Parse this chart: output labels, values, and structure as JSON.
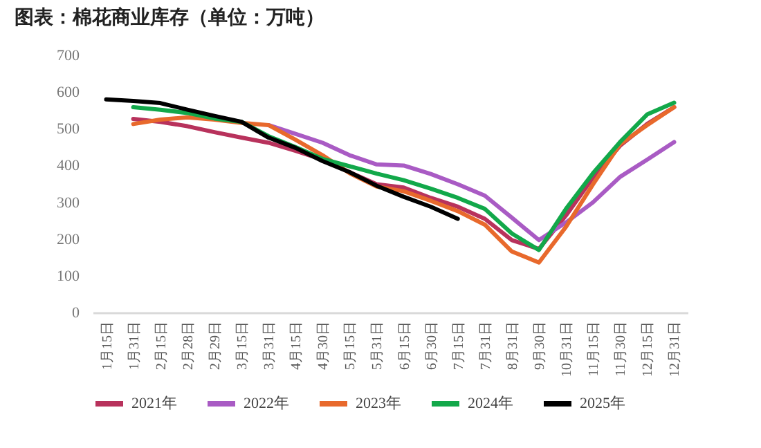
{
  "chart_data": {
    "type": "line",
    "title": "图表：棉花商业库存（单位：万吨）",
    "categories": [
      "1月15日",
      "1月31日",
      "2月15日",
      "2月28日",
      "2月29日",
      "3月15日",
      "3月31日",
      "4月15日",
      "4月30日",
      "5月15日",
      "5月31日",
      "6月15日",
      "6月30日",
      "7月15日",
      "7月31日",
      "8月31日",
      "9月30日",
      "10月31日",
      "11月15日",
      "11月30日",
      "12月15日",
      "12月31日"
    ],
    "series": [
      {
        "name": "2021年",
        "color": "#b8325c",
        "values": [
          null,
          527,
          519,
          507,
          491,
          476,
          462,
          440,
          416,
          382,
          349,
          340,
          312,
          288,
          255,
          197,
          173,
          264,
          367,
          454,
          513,
          559
        ]
      },
      {
        "name": "2022年",
        "color": "#a95bc4",
        "values": [
          null,
          null,
          null,
          null,
          null,
          null,
          510,
          486,
          462,
          428,
          403,
          400,
          377,
          349,
          318,
          258,
          197,
          245,
          300,
          369,
          416,
          464
        ]
      },
      {
        "name": "2023年",
        "color": "#e8692c",
        "values": [
          null,
          513,
          525,
          531,
          525,
          516,
          510,
          470,
          428,
          379,
          343,
          330,
          304,
          276,
          239,
          166,
          136,
          233,
          349,
          458,
          510,
          559
        ]
      },
      {
        "name": "2024年",
        "color": "#12a84a",
        "values": [
          null,
          559,
          552,
          543,
          528,
          519,
          480,
          450,
          418,
          398,
          378,
          360,
          337,
          312,
          282,
          215,
          170,
          282,
          379,
          464,
          539,
          571
        ]
      },
      {
        "name": "2025年",
        "color": "#000000",
        "values": [
          580,
          576,
          570,
          552,
          535,
          519,
          476,
          448,
          412,
          382,
          345,
          315,
          288,
          255,
          null,
          null,
          null,
          null,
          null,
          null,
          null,
          null
        ]
      }
    ],
    "ylim": [
      0,
      700
    ],
    "yticks": [
      0,
      100,
      200,
      300,
      400,
      500,
      600,
      700
    ],
    "grid": false,
    "legend": "bottom",
    "marker": "none",
    "line_style": "solid"
  }
}
